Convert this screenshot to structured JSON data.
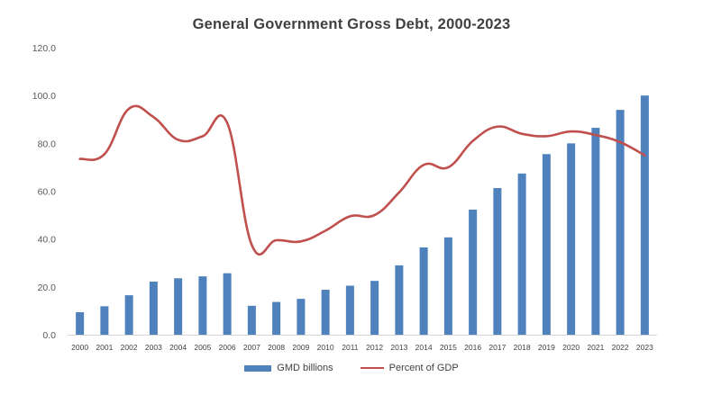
{
  "chart_data": {
    "type": "bar",
    "title": "General Government Gross Debt, 2000-2023",
    "xlabel": "",
    "ylabel": "",
    "ylim": [
      0,
      120
    ],
    "yticks": [
      "0.0",
      "20.0",
      "40.0",
      "60.0",
      "80.0",
      "100.0",
      "120.0"
    ],
    "categories": [
      "2000",
      "2001",
      "2002",
      "2003",
      "2004",
      "2005",
      "2006",
      "2007",
      "2008",
      "2009",
      "2010",
      "2011",
      "2012",
      "2013",
      "2014",
      "2015",
      "2016",
      "2017",
      "2018",
      "2019",
      "2020",
      "2021",
      "2022",
      "2023"
    ],
    "series": [
      {
        "name": "GMD billions",
        "type": "bar",
        "color": "#4F81BD",
        "values": [
          9.4,
          11.9,
          16.5,
          22.2,
          23.6,
          24.4,
          25.7,
          12.1,
          13.7,
          15.0,
          18.8,
          20.5,
          22.5,
          29.0,
          36.5,
          40.7,
          52.3,
          61.3,
          67.4,
          75.5,
          80.0,
          86.5,
          94.0,
          100.0
        ]
      },
      {
        "name": "Percent of GDP",
        "type": "line",
        "color": "#C0504D",
        "values": [
          73.5,
          75.5,
          94.5,
          91.0,
          81.5,
          83.0,
          88.5,
          37.5,
          39.5,
          39.0,
          43.5,
          49.5,
          50.0,
          59.5,
          71.0,
          70.0,
          81.0,
          87.0,
          84.0,
          83.0,
          85.0,
          83.5,
          80.5,
          75.0
        ]
      }
    ],
    "legend_position": "bottom",
    "grid": false
  }
}
